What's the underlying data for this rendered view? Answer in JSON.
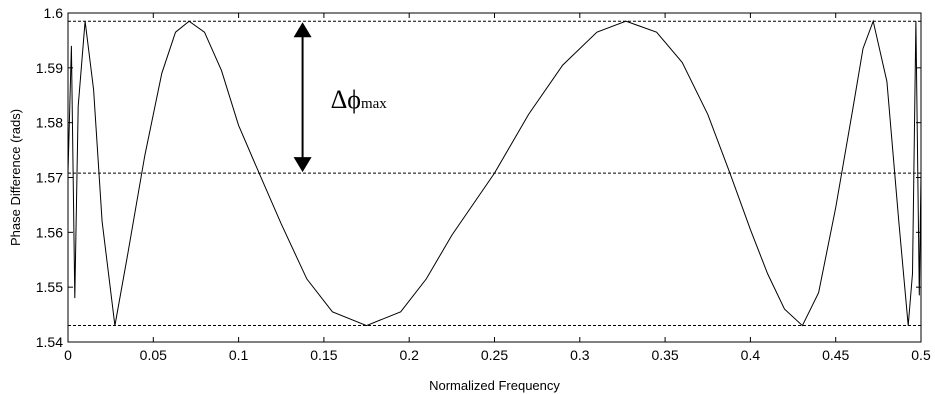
{
  "chart_data": {
    "type": "line",
    "title": "",
    "xlabel": "Normalized Frequency",
    "ylabel": "Phase Difference (rads)",
    "xlim": [
      0,
      0.5
    ],
    "ylim": [
      1.54,
      1.6
    ],
    "x_ticks": [
      0,
      0.05,
      0.1,
      0.15,
      0.2,
      0.25,
      0.3,
      0.35,
      0.4,
      0.45,
      0.5
    ],
    "y_ticks": [
      1.54,
      1.55,
      1.56,
      1.57,
      1.58,
      1.59,
      1.6
    ],
    "x_tick_labels": [
      "0",
      "0.05",
      "0.1",
      "0.15",
      "0.2",
      "0.25",
      "0.3",
      "0.35",
      "0.4",
      "0.45",
      "0.5"
    ],
    "y_tick_labels": [
      "1.54",
      "1.55",
      "1.56",
      "1.57",
      "1.58",
      "1.59",
      "1.6"
    ],
    "grid": false,
    "series": [
      {
        "points": [
          [
            0.0,
            1.5708
          ],
          [
            0.002,
            1.594
          ],
          [
            0.004,
            1.548
          ],
          [
            0.006,
            1.583
          ],
          [
            0.01,
            1.5985
          ],
          [
            0.015,
            1.586
          ],
          [
            0.02,
            1.562
          ],
          [
            0.0275,
            1.543
          ],
          [
            0.035,
            1.556
          ],
          [
            0.045,
            1.574
          ],
          [
            0.055,
            1.589
          ],
          [
            0.063,
            1.5965
          ],
          [
            0.071,
            1.5985
          ],
          [
            0.08,
            1.5965
          ],
          [
            0.09,
            1.5895
          ],
          [
            0.1,
            1.5795
          ],
          [
            0.112,
            1.5708
          ],
          [
            0.125,
            1.5615
          ],
          [
            0.14,
            1.5515
          ],
          [
            0.155,
            1.5455
          ],
          [
            0.175,
            1.543
          ],
          [
            0.195,
            1.5455
          ],
          [
            0.21,
            1.5515
          ],
          [
            0.225,
            1.5595
          ],
          [
            0.25,
            1.5708
          ],
          [
            0.27,
            1.5815
          ],
          [
            0.29,
            1.5905
          ],
          [
            0.31,
            1.5965
          ],
          [
            0.327,
            1.5985
          ],
          [
            0.345,
            1.5965
          ],
          [
            0.36,
            1.591
          ],
          [
            0.375,
            1.5815
          ],
          [
            0.388,
            1.5708
          ],
          [
            0.4,
            1.5605
          ],
          [
            0.41,
            1.5525
          ],
          [
            0.42,
            1.546
          ],
          [
            0.4305,
            1.543
          ],
          [
            0.44,
            1.549
          ],
          [
            0.45,
            1.5645
          ],
          [
            0.46,
            1.5825
          ],
          [
            0.466,
            1.5935
          ],
          [
            0.472,
            1.5985
          ],
          [
            0.48,
            1.5875
          ],
          [
            0.487,
            1.562
          ],
          [
            0.4925,
            1.543
          ],
          [
            0.495,
            1.5525
          ],
          [
            0.497,
            1.5985
          ],
          [
            0.499,
            1.5485
          ],
          [
            0.5,
            1.5708
          ]
        ]
      }
    ],
    "reference_lines": [
      1.5985,
      1.5708,
      1.543
    ],
    "annotations": [
      {
        "text": "Δϕ",
        "subscript": "max",
        "arrow_x": 0.1375,
        "arrow_from": 1.5985,
        "arrow_to": 1.5708
      }
    ]
  }
}
